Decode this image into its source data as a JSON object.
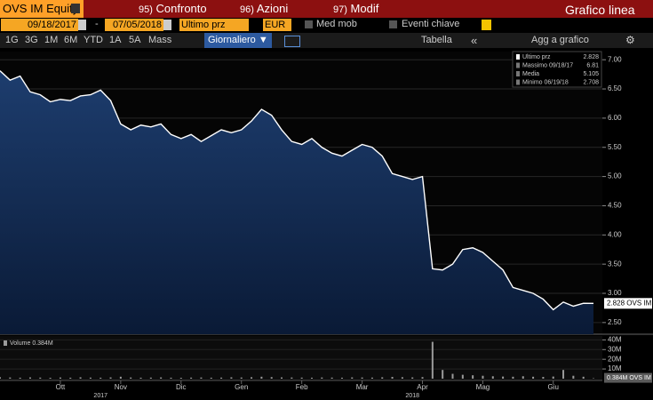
{
  "toolbar": {
    "security": "OVS IM Equity",
    "tabs": [
      {
        "number": "95)",
        "label": "Confronto"
      },
      {
        "number": "96)",
        "label": "Azioni"
      },
      {
        "number": "97)",
        "label": "Modif"
      }
    ],
    "chart_type": "Grafico linea"
  },
  "controls": {
    "start_date": "09/18/2017",
    "separator": "-",
    "end_date": "07/05/2018",
    "field": "Ultimo prz",
    "currency": "EUR",
    "moving_avg": "Med mob",
    "key_events": "Eventi chiave",
    "periods": [
      "1G",
      "3G",
      "1M",
      "6M",
      "YTD",
      "1A",
      "5A",
      "Mass"
    ],
    "frequency": "Giornaliero ▼",
    "table": "Tabella",
    "collapse": "«",
    "add": "Agg a grafico"
  },
  "chart_data": [
    {
      "type": "area",
      "categories": [
        null,
        null,
        null,
        null,
        null,
        null,
        "Ott",
        null,
        null,
        null,
        null,
        null,
        "Nov",
        null,
        null,
        null,
        null,
        null,
        "Dic",
        null,
        null,
        null,
        null,
        null,
        "Gen",
        null,
        null,
        null,
        null,
        null,
        "Feb",
        null,
        null,
        null,
        null,
        null,
        "Mar",
        null,
        null,
        null,
        null,
        null,
        "Apr",
        null,
        null,
        null,
        null,
        null,
        "Mag",
        null,
        null,
        null,
        null,
        null,
        null,
        "Giu",
        null,
        null,
        null,
        null
      ],
      "year_labels": [
        null,
        null,
        null,
        null,
        null,
        null,
        null,
        null,
        null,
        null,
        "2017",
        null,
        null,
        null,
        null,
        null,
        null,
        null,
        null,
        null,
        null,
        null,
        null,
        null,
        null,
        null,
        null,
        null,
        null,
        null,
        null,
        null,
        null,
        null,
        null,
        null,
        null,
        null,
        null,
        null,
        null,
        "2018",
        null,
        null,
        null,
        null,
        null,
        null,
        null,
        null,
        null,
        null,
        null,
        null,
        null,
        null,
        null,
        null,
        null,
        null
      ],
      "series": [
        {
          "name": "OVS IM",
          "color": "#ffffff",
          "values": [
            6.81,
            6.65,
            6.72,
            6.45,
            6.4,
            6.28,
            6.32,
            6.3,
            6.38,
            6.4,
            6.48,
            6.3,
            5.9,
            5.8,
            5.88,
            5.85,
            5.9,
            5.72,
            5.65,
            5.72,
            5.6,
            5.7,
            5.8,
            5.75,
            5.8,
            5.95,
            6.15,
            6.05,
            5.8,
            5.6,
            5.55,
            5.65,
            5.5,
            5.4,
            5.35,
            5.45,
            5.55,
            5.5,
            5.35,
            5.05,
            5.0,
            4.95,
            5.0,
            3.42,
            3.4,
            3.5,
            3.75,
            3.78,
            3.7,
            3.55,
            3.4,
            3.1,
            3.05,
            3.0,
            2.9,
            2.72,
            2.85,
            2.78,
            2.83,
            2.828
          ]
        }
      ],
      "last_value_label": "2.828",
      "legend_entries": [
        {
          "label": "Ultimo prz",
          "value": "2.828"
        },
        {
          "label": "Massimo 09/18/17",
          "value": "6.81"
        },
        {
          "label": "Media",
          "value": "5.105"
        },
        {
          "label": "Minimo 06/19/18",
          "value": "2.708"
        }
      ],
      "ylim": [
        2.3,
        7.14
      ],
      "yticks": [
        {
          "value": 2.5,
          "label": "2.50"
        },
        {
          "value": 3,
          "label": "3.00"
        },
        {
          "value": 3.5,
          "label": "3.50"
        },
        {
          "value": 4,
          "label": "4.00"
        },
        {
          "value": 4.5,
          "label": "4.50"
        },
        {
          "value": 5,
          "label": "5.00"
        },
        {
          "value": 5.5,
          "label": "5.50"
        },
        {
          "value": 6,
          "label": "6.00"
        },
        {
          "value": 6.5,
          "label": "6.50"
        },
        {
          "value": 7,
          "label": "7.00"
        }
      ],
      "grid": true
    },
    {
      "type": "bar",
      "series": [
        {
          "name": "Volume",
          "color": "#9a9a9a",
          "values": [
            1.5,
            1.2,
            1.0,
            1.3,
            1.1,
            0.9,
            1.2,
            1.0,
            1.4,
            1.1,
            1.0,
            1.3,
            2.0,
            1.2,
            1.0,
            1.1,
            1.3,
            1.0,
            0.9,
            1.1,
            1.2,
            1.0,
            1.1,
            1.4,
            1.2,
            1.5,
            2.0,
            1.6,
            1.3,
            1.2,
            1.1,
            1.0,
            1.2,
            1.1,
            1.0,
            1.3,
            1.2,
            1.1,
            1.4,
            1.8,
            1.5,
            1.3,
            1.6,
            38,
            9,
            5,
            4,
            3.5,
            3,
            2.5,
            2.2,
            2,
            2.5,
            2,
            1.8,
            2.2,
            9,
            3,
            2,
            0.384
          ]
        }
      ],
      "legend_value": "0.384M",
      "last_value_label": "0.384M",
      "ylim": [
        0,
        44
      ],
      "yticks": [
        {
          "value": 10,
          "label": "10M"
        },
        {
          "value": 20,
          "label": "20M"
        },
        {
          "value": 30,
          "label": "30M"
        },
        {
          "value": 40,
          "label": "40M"
        }
      ]
    }
  ]
}
